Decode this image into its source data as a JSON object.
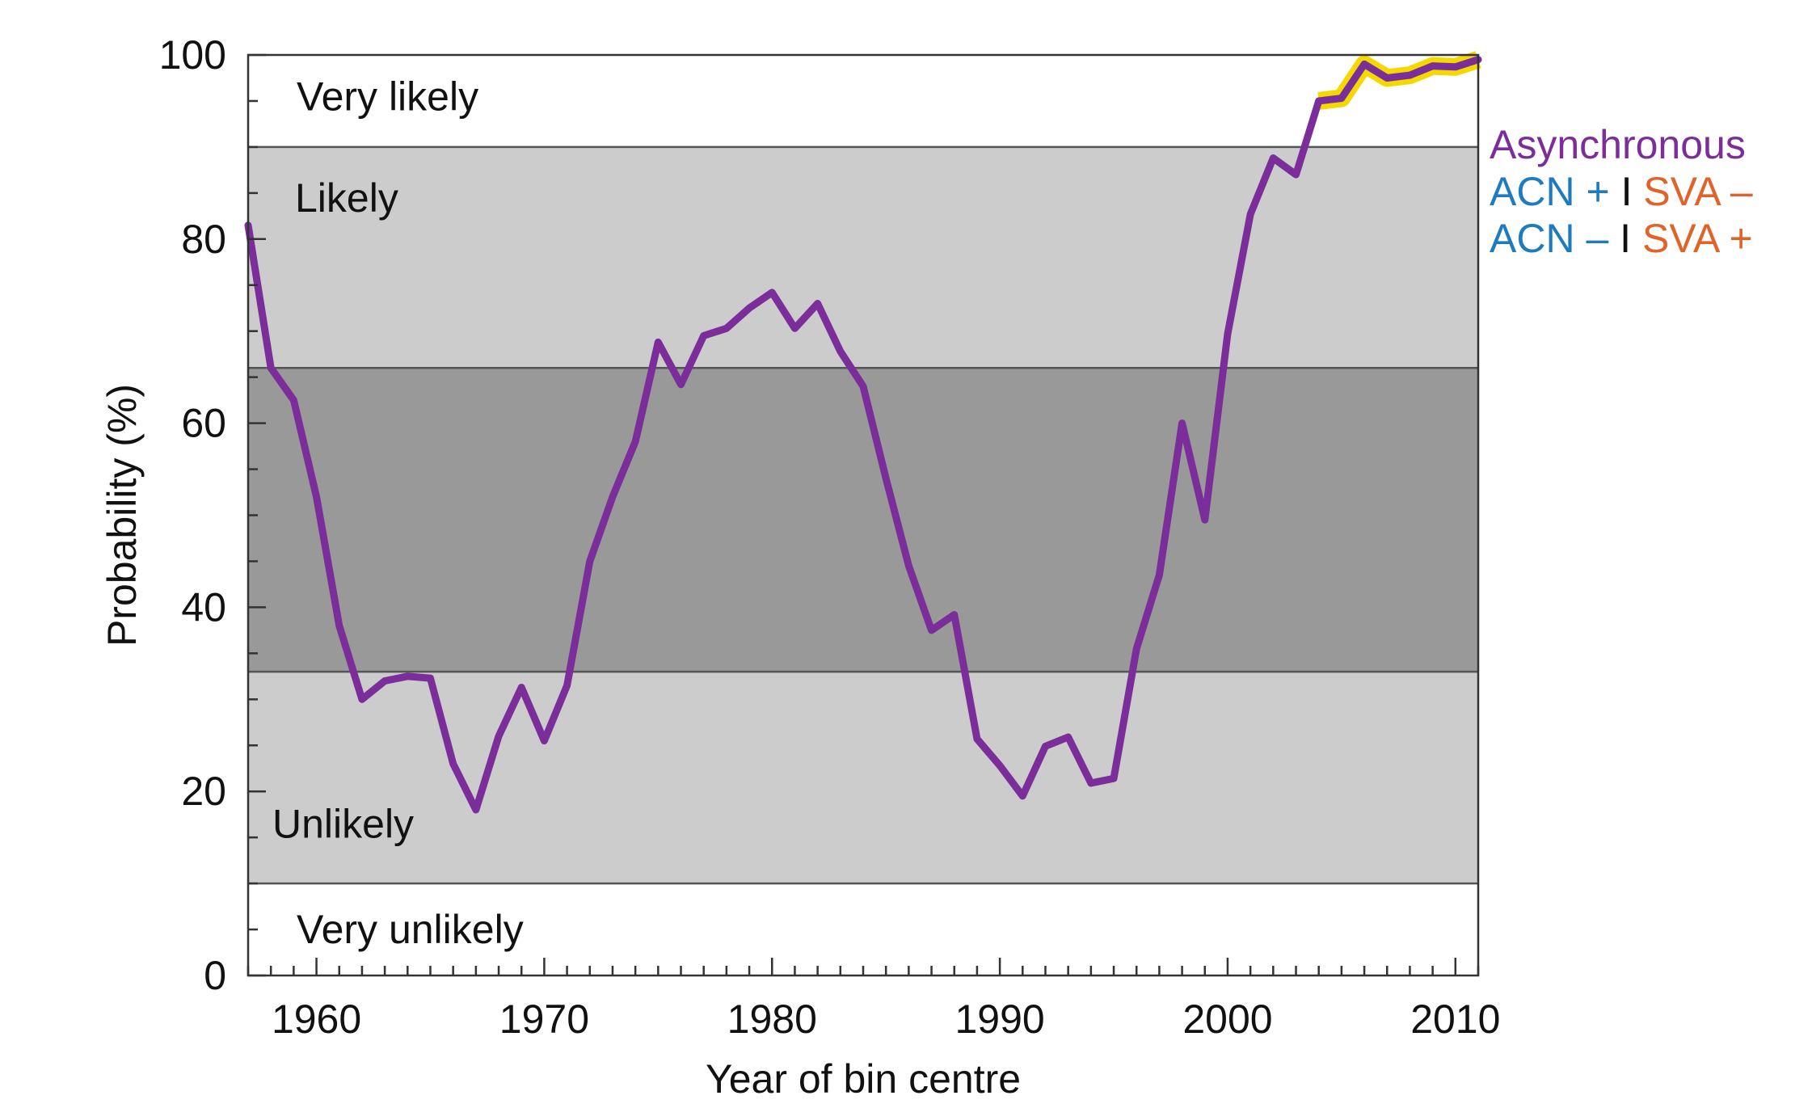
{
  "chart_data": {
    "type": "line",
    "xlabel": "Year of bin centre",
    "ylabel": "Probability (%)",
    "xlim": [
      1957,
      2011
    ],
    "ylim": [
      0,
      100
    ],
    "x_ticks": [
      1960,
      1970,
      1980,
      1990,
      2000,
      2010
    ],
    "y_ticks": [
      0,
      20,
      40,
      60,
      80,
      100
    ],
    "grid": false,
    "bands": [
      {
        "from": 0,
        "to": 10,
        "label": "Very unlikely",
        "color": "#ffffff"
      },
      {
        "from": 10,
        "to": 33,
        "label": "Unlikely",
        "color": "#cccccc"
      },
      {
        "from": 33,
        "to": 66,
        "label": "",
        "color": "#999999"
      },
      {
        "from": 66,
        "to": 90,
        "label": "Likely",
        "color": "#cccccc"
      },
      {
        "from": 90,
        "to": 100,
        "label": "Very likely",
        "color": "#ffffff"
      }
    ],
    "series": [
      {
        "name": "Asynchronous",
        "color": "#7b2d9a",
        "x": [
          1957,
          1958,
          1959,
          1960,
          1961,
          1962,
          1963,
          1964,
          1965,
          1966,
          1967,
          1968,
          1969,
          1970,
          1971,
          1972,
          1973,
          1974,
          1975,
          1976,
          1977,
          1978,
          1979,
          1980,
          1981,
          1982,
          1983,
          1984,
          1985,
          1986,
          1987,
          1988,
          1989,
          1990,
          1991,
          1992,
          1993,
          1994,
          1995,
          1996,
          1997,
          1998,
          1999,
          2000,
          2001,
          2002,
          2003,
          2004,
          2005,
          2006,
          2007,
          2008,
          2009,
          2010,
          2011
        ],
        "y": [
          81.5,
          66,
          62.5,
          52,
          38,
          30,
          32,
          32.5,
          32.3,
          23,
          18,
          26,
          31.3,
          25.5,
          31.5,
          45,
          52,
          58,
          68.8,
          64.2,
          69.5,
          70.3,
          72.5,
          74.2,
          70.3,
          73,
          67.8,
          64,
          54,
          44.5,
          37.5,
          39.2,
          25.7,
          22.8,
          19.5,
          24.9,
          25.9,
          20.9,
          21.4,
          35.5,
          43.5,
          60,
          49.5,
          69.7,
          82.7,
          88.8,
          87,
          95,
          95.3,
          99,
          97.5,
          97.8,
          98.8,
          98.7,
          99.5
        ],
        "highlight": {
          "from": 2004,
          "to": 2011,
          "color": "#f5d800"
        }
      }
    ],
    "legend": {
      "placement": "right",
      "entries": [
        {
          "parts": [
            {
              "text": "Asynchronous",
              "color": "#7b2d9a"
            }
          ]
        },
        {
          "parts": [
            {
              "text": "ACN +",
              "color": "#1f7bbf"
            },
            {
              "text": "I",
              "color": "#111111"
            },
            {
              "text": "SVA –",
              "color": "#e0642a"
            }
          ]
        },
        {
          "parts": [
            {
              "text": "ACN –",
              "color": "#1f7bbf"
            },
            {
              "text": "I",
              "color": "#111111"
            },
            {
              "text": "SVA +",
              "color": "#e0642a"
            }
          ]
        }
      ]
    }
  }
}
